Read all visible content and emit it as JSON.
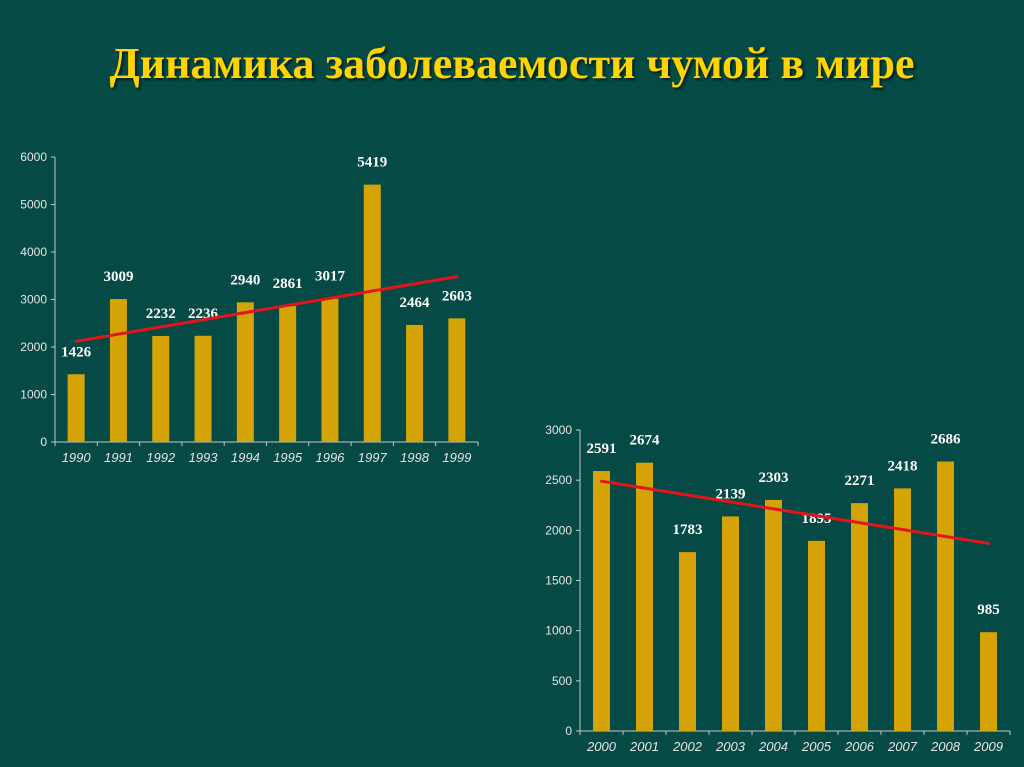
{
  "title": "Динамика заболеваемости чумой в мире",
  "colors": {
    "background": "#064a45",
    "bar": "#d4a406",
    "trend": "#e2151b",
    "title": "#ffd400",
    "axis": "#c8c8c8"
  },
  "chart_data": [
    {
      "type": "bar",
      "categories": [
        "1990",
        "1991",
        "1992",
        "1993",
        "1994",
        "1995",
        "1996",
        "1997",
        "1998",
        "1999"
      ],
      "values": [
        1426,
        3009,
        2232,
        2236,
        2940,
        2861,
        3017,
        5419,
        2464,
        2603
      ],
      "data_labels": [
        "1426",
        "3009",
        "2232",
        "2236",
        "2940",
        "2861",
        "3017",
        "5419",
        "2464",
        "2603"
      ],
      "ylim": [
        0,
        6000
      ],
      "yticks": [
        0,
        1000,
        2000,
        3000,
        4000,
        5000,
        6000
      ],
      "trendline": {
        "start": [
          1990,
          2120
        ],
        "end": [
          1999,
          3480
        ]
      },
      "grid": false
    },
    {
      "type": "bar",
      "categories": [
        "2000",
        "2001",
        "2002",
        "2003",
        "2004",
        "2005",
        "2006",
        "2007",
        "2008",
        "2009"
      ],
      "values": [
        2591,
        2674,
        1783,
        2139,
        2303,
        1895,
        2271,
        2418,
        2686,
        985
      ],
      "data_labels": [
        "2591",
        "2674",
        "1783",
        "2139",
        "2303",
        "1895",
        "2271",
        "2418",
        "2686",
        "985"
      ],
      "ylim": [
        0,
        3000
      ],
      "yticks": [
        0,
        500,
        1000,
        1500,
        2000,
        2500,
        3000
      ],
      "trendline": {
        "start": [
          2000,
          2490
        ],
        "end": [
          2009,
          1870
        ]
      },
      "grid": false
    }
  ]
}
